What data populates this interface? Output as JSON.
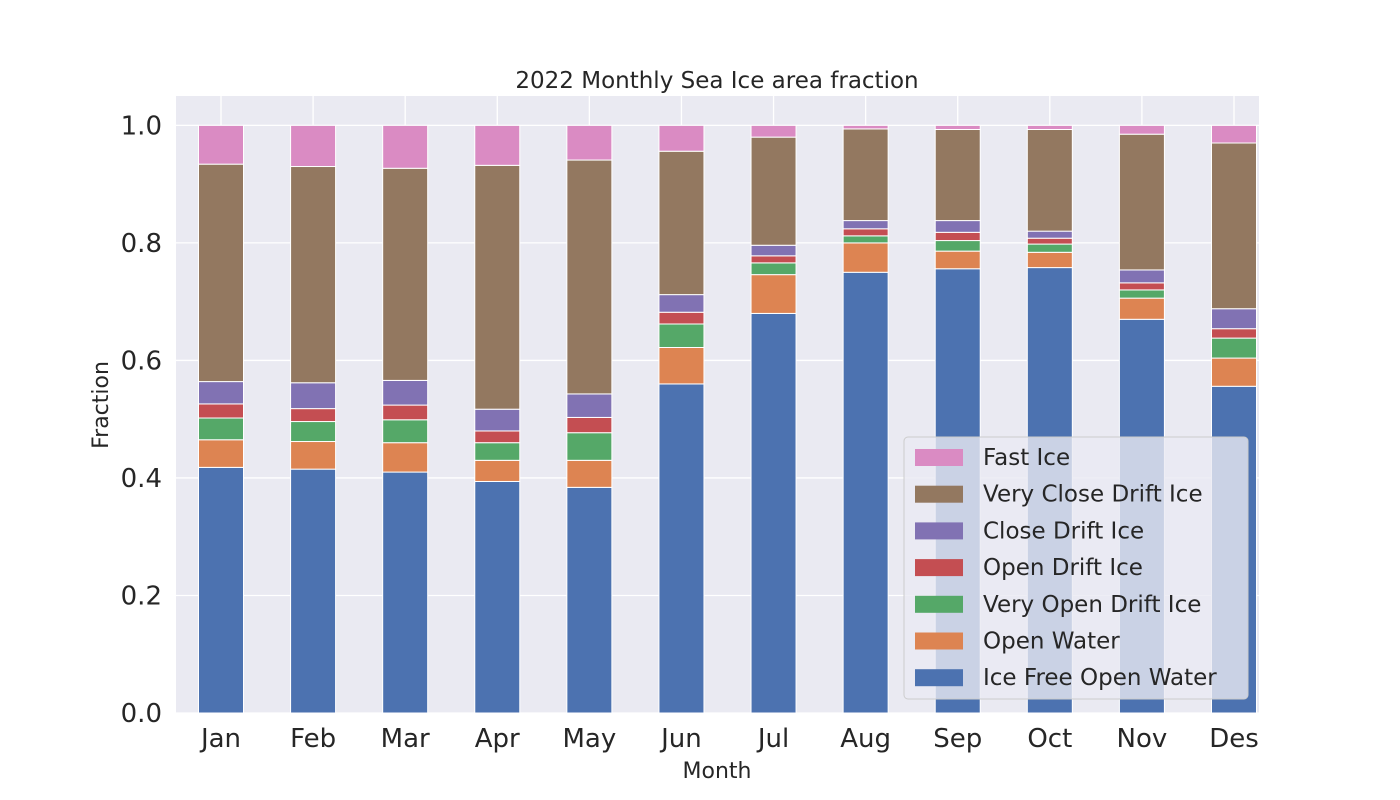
{
  "chart_data": {
    "type": "bar",
    "stacked": true,
    "title": "2022 Monthly Sea Ice area fraction",
    "xlabel": "Month",
    "ylabel": "Fraction",
    "ylim": [
      0,
      1.05
    ],
    "yticks": [
      "0.0",
      "0.2",
      "0.4",
      "0.6",
      "0.8",
      "1.0"
    ],
    "grid": true,
    "legend_position": "lower-right",
    "categories": [
      "Jan",
      "Feb",
      "Mar",
      "Apr",
      "May",
      "Jun",
      "Jul",
      "Aug",
      "Sep",
      "Oct",
      "Nov",
      "Des"
    ],
    "series": [
      {
        "name": "Ice Free Open Water",
        "color": "#4c72b0",
        "values": [
          0.418,
          0.415,
          0.41,
          0.394,
          0.384,
          0.56,
          0.68,
          0.75,
          0.756,
          0.758,
          0.67,
          0.556
        ]
      },
      {
        "name": "Open Water",
        "color": "#dd8452",
        "values": [
          0.047,
          0.047,
          0.05,
          0.036,
          0.046,
          0.062,
          0.066,
          0.05,
          0.03,
          0.026,
          0.036,
          0.048
        ]
      },
      {
        "name": "Very Open Drift Ice",
        "color": "#55a868",
        "values": [
          0.037,
          0.034,
          0.039,
          0.03,
          0.047,
          0.04,
          0.02,
          0.012,
          0.018,
          0.014,
          0.014,
          0.034
        ]
      },
      {
        "name": "Open Drift Ice",
        "color": "#c44e52",
        "values": [
          0.024,
          0.022,
          0.025,
          0.02,
          0.026,
          0.02,
          0.012,
          0.012,
          0.014,
          0.01,
          0.012,
          0.016
        ]
      },
      {
        "name": "Close Drift Ice",
        "color": "#8172b3",
        "values": [
          0.038,
          0.044,
          0.042,
          0.037,
          0.04,
          0.03,
          0.018,
          0.014,
          0.02,
          0.012,
          0.022,
          0.034
        ]
      },
      {
        "name": "Very Close Drift Ice",
        "color": "#937860",
        "values": [
          0.37,
          0.368,
          0.361,
          0.415,
          0.398,
          0.244,
          0.184,
          0.156,
          0.155,
          0.173,
          0.231,
          0.282
        ]
      },
      {
        "name": "Fast Ice",
        "color": "#da8bc3",
        "values": [
          0.066,
          0.07,
          0.073,
          0.068,
          0.059,
          0.044,
          0.02,
          0.006,
          0.007,
          0.007,
          0.015,
          0.03
        ]
      }
    ]
  },
  "colors": {
    "plot_background": "#eaeaf2",
    "grid": "#ffffff",
    "text": "#262626"
  }
}
